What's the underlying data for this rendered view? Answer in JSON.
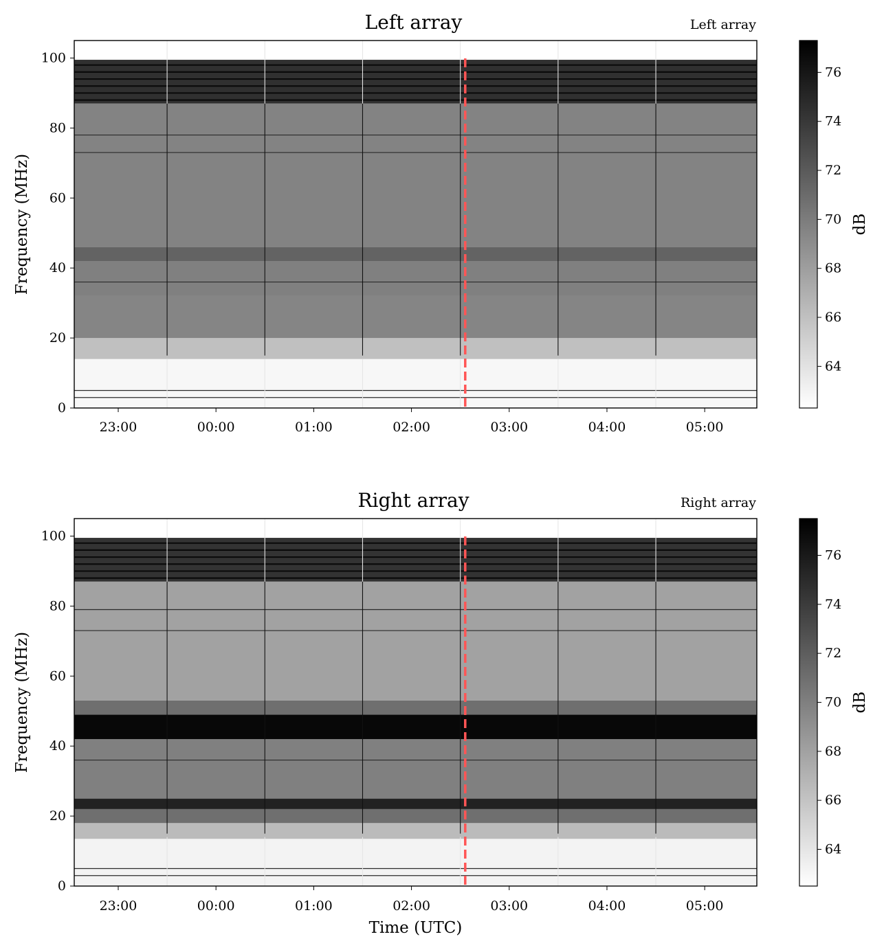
{
  "chart_data": [
    {
      "type": "heatmap",
      "title": "Left array",
      "corner_label": "Left array",
      "xlabel": "",
      "ylabel": "Frequency (MHz)",
      "x_ticks": [
        "23:00",
        "00:00",
        "01:00",
        "02:00",
        "03:00",
        "04:00",
        "05:00"
      ],
      "x_range_utc": [
        "22:33",
        "05:32"
      ],
      "y_ticks": [
        0,
        20,
        40,
        60,
        80,
        100
      ],
      "ylim": [
        0,
        105
      ],
      "colorbar": {
        "label": "dB",
        "ticks": [
          64,
          66,
          68,
          70,
          72,
          74,
          76
        ],
        "range": [
          62.3,
          77.3
        ],
        "colormap": "gray_r"
      },
      "marker_line": {
        "time_utc": "02:33",
        "color": "#ff5555",
        "style": "dashed"
      },
      "bands": [
        {
          "f0": 0,
          "f1": 14,
          "db": 62.8
        },
        {
          "f0": 14,
          "f1": 20,
          "db": 66.0
        },
        {
          "f0": 20,
          "f1": 32,
          "db": 69.5
        },
        {
          "f0": 32,
          "f1": 42,
          "db": 69.8
        },
        {
          "f0": 42,
          "f1": 46,
          "db": 71.5
        },
        {
          "f0": 46,
          "f1": 87,
          "db": 69.6
        },
        {
          "f0": 87,
          "f1": 99.5,
          "db": 74.5
        },
        {
          "f0": 99.5,
          "f1": 105,
          "db": 62.3
        }
      ],
      "narrow_lines_mhz": [
        3,
        5,
        36,
        73,
        78,
        88,
        90,
        92,
        94,
        96,
        98
      ],
      "vertical_streaks_utc": [
        "23:30",
        "00:30",
        "01:30",
        "02:30",
        "03:30",
        "04:30"
      ]
    },
    {
      "type": "heatmap",
      "title": "Right array",
      "corner_label": "Right array",
      "xlabel": "Time (UTC)",
      "ylabel": "Frequency (MHz)",
      "x_ticks": [
        "23:00",
        "00:00",
        "01:00",
        "02:00",
        "03:00",
        "04:00",
        "05:00"
      ],
      "x_range_utc": [
        "22:33",
        "05:32"
      ],
      "y_ticks": [
        0,
        20,
        40,
        60,
        80,
        100
      ],
      "ylim": [
        0,
        105
      ],
      "colorbar": {
        "label": "dB",
        "ticks": [
          64,
          66,
          68,
          70,
          72,
          74,
          76
        ],
        "range": [
          62.5,
          77.5
        ],
        "colormap": "gray_r"
      },
      "marker_line": {
        "time_utc": "02:33",
        "color": "#ff5555",
        "style": "dashed"
      },
      "bands": [
        {
          "f0": 0,
          "f1": 13.5,
          "db": 63.2
        },
        {
          "f0": 13.5,
          "f1": 18,
          "db": 66.5
        },
        {
          "f0": 18,
          "f1": 22,
          "db": 71.0
        },
        {
          "f0": 22,
          "f1": 25,
          "db": 75.5
        },
        {
          "f0": 25,
          "f1": 42,
          "db": 70.0
        },
        {
          "f0": 42,
          "f1": 49,
          "db": 77.0
        },
        {
          "f0": 49,
          "f1": 53,
          "db": 71.0
        },
        {
          "f0": 53,
          "f1": 87,
          "db": 68.0
        },
        {
          "f0": 87,
          "f1": 99.5,
          "db": 74.5
        },
        {
          "f0": 99.5,
          "f1": 105,
          "db": 62.5
        }
      ],
      "narrow_lines_mhz": [
        3,
        5,
        36,
        73,
        79,
        88,
        90,
        92,
        94,
        96,
        98
      ],
      "vertical_streaks_utc": [
        "23:30",
        "00:30",
        "01:30",
        "02:30",
        "03:30",
        "04:30"
      ]
    }
  ]
}
